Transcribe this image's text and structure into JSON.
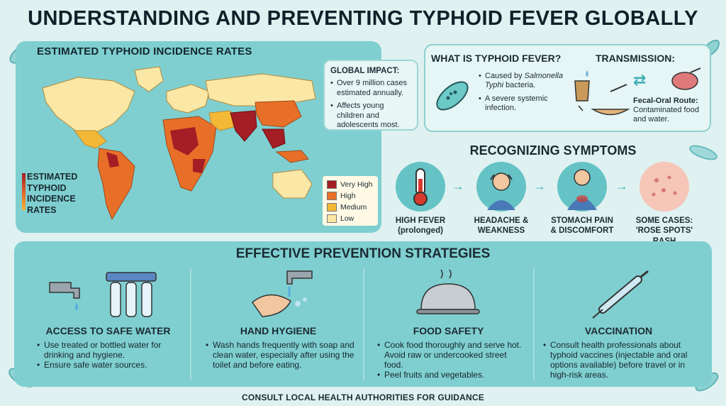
{
  "title": "UNDERSTANDING AND PREVENTING TYPHOID FEVER GLOBALLY",
  "map": {
    "title": "ESTIMATED TYPHOID INCIDENCE RATES",
    "side_label_lines": [
      "ESTIMATED",
      "TYPHOID",
      "INCIDENCE",
      "RATES"
    ],
    "legend": [
      {
        "label": "Very High",
        "color": "#a31e25"
      },
      {
        "label": "High",
        "color": "#e86f28"
      },
      {
        "label": "Medium",
        "color": "#f3b936"
      },
      {
        "label": "Low",
        "color": "#fbe8a6"
      }
    ]
  },
  "impact": {
    "heading": "GLOBAL IMPACT:",
    "items": [
      "Over 9 million cases estimated annually.",
      "Affects young children and adolescents most."
    ]
  },
  "what": {
    "heading": "WHAT IS TYPHOID FEVER?",
    "item1_prefix": "Caused by",
    "item1_species": "Salmonella Typhi",
    "item1_suffix": "bacteria.",
    "item2": "A severe systemic infection."
  },
  "transmission": {
    "heading": "TRANSMISSION:",
    "route": "Fecal-Oral Route:",
    "desc": "Contaminated food and water."
  },
  "symptoms": {
    "heading": "RECOGNIZING SYMPTOMS",
    "items": [
      {
        "line1": "HIGH FEVER",
        "line2": "(prolonged)",
        "icon": "thermometer-icon"
      },
      {
        "line1": "HEADACHE &",
        "line2": "WEAKNESS",
        "icon": "headache-person-icon"
      },
      {
        "line1": "STOMACH PAIN",
        "line2": "& DISCOMFORT",
        "icon": "stomach-pain-person-icon"
      },
      {
        "line1": "SOME CASES:",
        "line2": "'ROSE SPOTS' RASH",
        "icon": "rash-skin-icon"
      }
    ]
  },
  "prevention": {
    "heading": "EFFECTIVE PREVENTION STRATEGIES",
    "columns": [
      {
        "title": "ACCESS TO SAFE WATER",
        "icon": "water-tap-filter-icon",
        "items": [
          "Use treated or bottled water for drinking and hygiene.",
          "Ensure safe water sources."
        ]
      },
      {
        "title": "HAND HYGIENE",
        "icon": "handwashing-icon",
        "items": [
          "Wash hands frequently with soap and clean water, especially after using the toilet and before eating."
        ]
      },
      {
        "title": "FOOD SAFETY",
        "icon": "food-cloche-icon",
        "items": [
          "Cook food thoroughly and serve hot. Avoid raw or undercooked street food.",
          "Peel fruits and vegetables."
        ]
      },
      {
        "title": "VACCINATION",
        "icon": "syringe-icon",
        "items": [
          "Consult health professionals about typhoid vaccines (injectable and oral options available) before travel or in high-risk areas."
        ]
      }
    ]
  },
  "footer": "CONSULT LOCAL HEALTH AUTHORITIES FOR GUIDANCE",
  "colors": {
    "panel": "#7fcfd0",
    "background": "#dff1f0",
    "accent": "#3cb0b5"
  }
}
